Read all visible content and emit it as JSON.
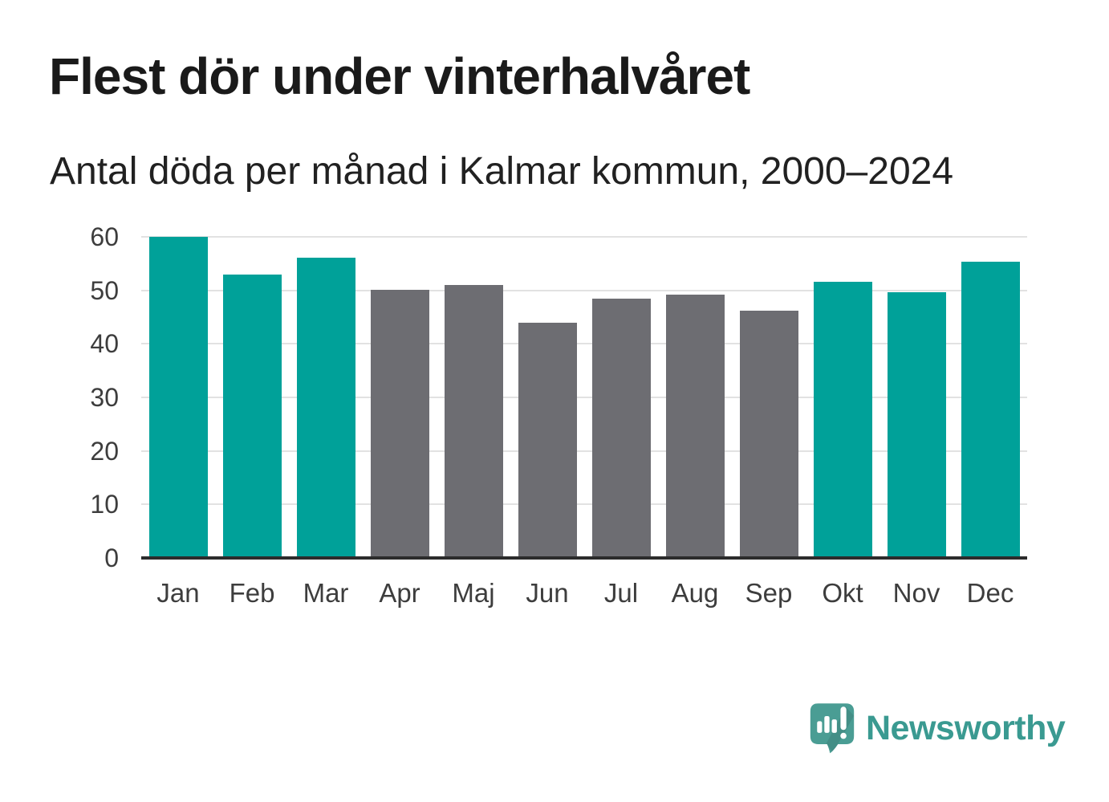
{
  "header": {
    "title": "Flest dör under vinterhalvåret",
    "subtitle": "Antal döda per månad i Kalmar kommun, 2000–2024"
  },
  "chart_data": {
    "type": "bar",
    "title": "Flest dör under vinterhalvåret",
    "subtitle": "Antal döda per månad i Kalmar kommun, 2000–2024",
    "categories": [
      "Jan",
      "Feb",
      "Mar",
      "Apr",
      "Maj",
      "Jun",
      "Jul",
      "Aug",
      "Sep",
      "Okt",
      "Nov",
      "Dec"
    ],
    "values": [
      60.0,
      53.0,
      56.1,
      50.1,
      51.0,
      44.0,
      48.5,
      49.2,
      46.2,
      51.6,
      49.7,
      55.4
    ],
    "bar_colors": [
      "#00a199",
      "#00a199",
      "#00a199",
      "#6d6d72",
      "#6d6d72",
      "#6d6d72",
      "#6d6d72",
      "#6d6d72",
      "#6d6d72",
      "#00a199",
      "#00a199",
      "#00a199"
    ],
    "xlabel": "",
    "ylabel": "",
    "ylim": [
      0,
      60
    ],
    "yticks": [
      0,
      10,
      20,
      30,
      40,
      50,
      60
    ],
    "grid": "horizontal",
    "legend": "none"
  },
  "colors": {
    "accent_teal": "#00a199",
    "neutral_gray": "#6d6d72",
    "title_text": "#1a1a1a",
    "axis_text": "#3d3d3d",
    "gridline": "#e2e2e2",
    "axis_line": "#2c2c2c",
    "background": "#ffffff"
  },
  "branding": {
    "logo_text": "Newsworthy",
    "text_color": "#3a9a91",
    "icon_color": "#4a9d94"
  }
}
